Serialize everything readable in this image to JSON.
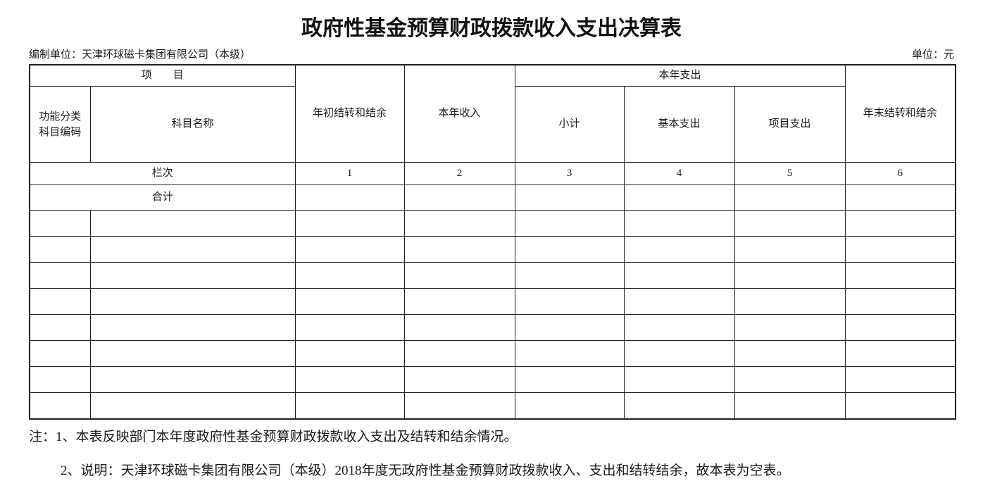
{
  "document": {
    "title": "政府性基金预算财政拨款收入支出决算表",
    "prepared_by": "编制单位：天津环球磁卡集团有限公司（本级）",
    "unit": "单位：元"
  },
  "table": {
    "column_count": 8,
    "empty_row_count": 8,
    "header": {
      "item_group": "项　　目",
      "func_code_line1": "功能分类",
      "func_code_line2": "科目编码",
      "subject_name": "科目名称",
      "begin_balance": "年初结转和结余",
      "year_income": "本年收入",
      "year_expense_group": "本年支出",
      "subtotal": "小计",
      "basic_expense": "基本支出",
      "project_expense": "项目支出",
      "end_balance": "年末结转和结余"
    },
    "lane_row": {
      "label": "栏次",
      "indices": [
        "1",
        "2",
        "3",
        "4",
        "5",
        "6"
      ]
    },
    "total_row": {
      "label": "合计",
      "values": [
        "",
        "",
        "",
        "",
        "",
        ""
      ]
    }
  },
  "notes": {
    "note1": "注：1、本表反映部门本年度政府性基金预算财政拨款收入支出及结转和结余情况。",
    "note2": "2、说明：天津环球磁卡集团有限公司（本级）2018年度无政府性基金预算财政拨款收入、支出和结转结余，故本表为空表。"
  },
  "colors": {
    "background": "#ffffff",
    "text": "#1a1a1a",
    "border": "#1f1f1f"
  }
}
